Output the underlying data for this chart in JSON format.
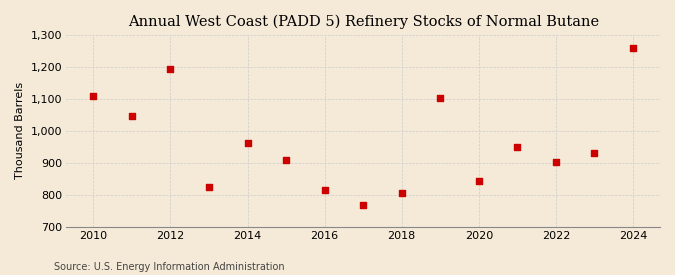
{
  "title": "Annual West Coast (PADD 5) Refinery Stocks of Normal Butane",
  "ylabel": "Thousand Barrels",
  "source": "Source: U.S. Energy Information Administration",
  "years": [
    2010,
    2011,
    2012,
    2013,
    2014,
    2015,
    2016,
    2017,
    2018,
    2019,
    2020,
    2021,
    2022,
    2023,
    2024
  ],
  "values": [
    1107,
    1047,
    1193,
    823,
    962,
    907,
    813,
    769,
    805,
    1102,
    843,
    948,
    901,
    930,
    1258
  ],
  "marker_color": "#cc0000",
  "marker_size": 5,
  "background_color": "#f5ead8",
  "grid_color": "#cccccc",
  "ylim": [
    700,
    1300
  ],
  "yticks": [
    700,
    800,
    900,
    1000,
    1100,
    1200,
    1300
  ],
  "xticks": [
    2010,
    2012,
    2014,
    2016,
    2018,
    2020,
    2022,
    2024
  ],
  "title_fontsize": 10.5,
  "label_fontsize": 8,
  "source_fontsize": 7,
  "tick_fontsize": 8
}
